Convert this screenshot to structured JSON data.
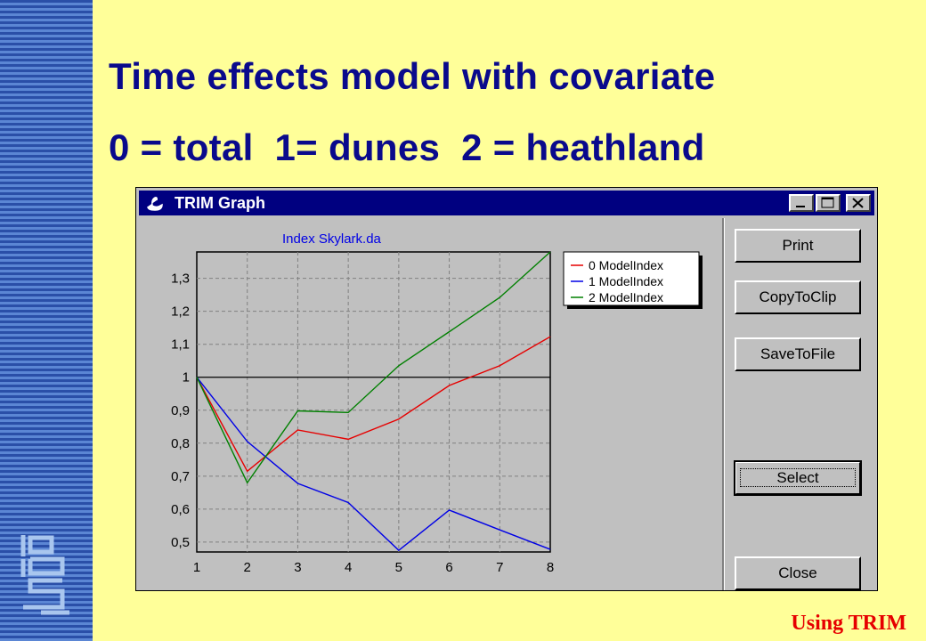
{
  "slide": {
    "title_line1": "Time effects model with covariate",
    "title_line2": "0 = total  1= dunes  2 = heathland",
    "footer": "Using TRIM"
  },
  "window": {
    "title": "TRIM Graph",
    "controls": [
      "minimize-icon",
      "maximize-icon",
      "close-icon"
    ]
  },
  "buttons": {
    "print": "Print",
    "copy": "CopyToClip",
    "save": "SaveToFile",
    "select": "Select",
    "close": "Close"
  },
  "chart_data": {
    "type": "line",
    "title": "Index    Skylark.da",
    "x": [
      1,
      2,
      3,
      4,
      5,
      6,
      7,
      8
    ],
    "ylim": [
      0.47,
      1.38
    ],
    "yticks": [
      "0,5",
      "0,6",
      "0,7",
      "0,8",
      "0,9",
      "1",
      "1,1",
      "1,2",
      "1,3"
    ],
    "ytick_values": [
      0.5,
      0.6,
      0.7,
      0.8,
      0.9,
      1.0,
      1.1,
      1.2,
      1.3
    ],
    "reference_line": 1.0,
    "grid": true,
    "legend_position": "top-right",
    "series": [
      {
        "name": "0 ModelIndex",
        "color": "#e60000",
        "values": [
          1.0,
          0.715,
          0.84,
          0.812,
          0.873,
          0.975,
          1.035,
          1.123
        ]
      },
      {
        "name": "1 ModelIndex",
        "color": "#0000e6",
        "values": [
          1.0,
          0.805,
          0.678,
          0.62,
          0.475,
          0.597,
          0.537,
          0.478
        ]
      },
      {
        "name": "2 ModelIndex",
        "color": "#008000",
        "values": [
          1.0,
          0.68,
          0.898,
          0.893,
          1.035,
          1.138,
          1.242,
          1.38
        ]
      }
    ]
  }
}
